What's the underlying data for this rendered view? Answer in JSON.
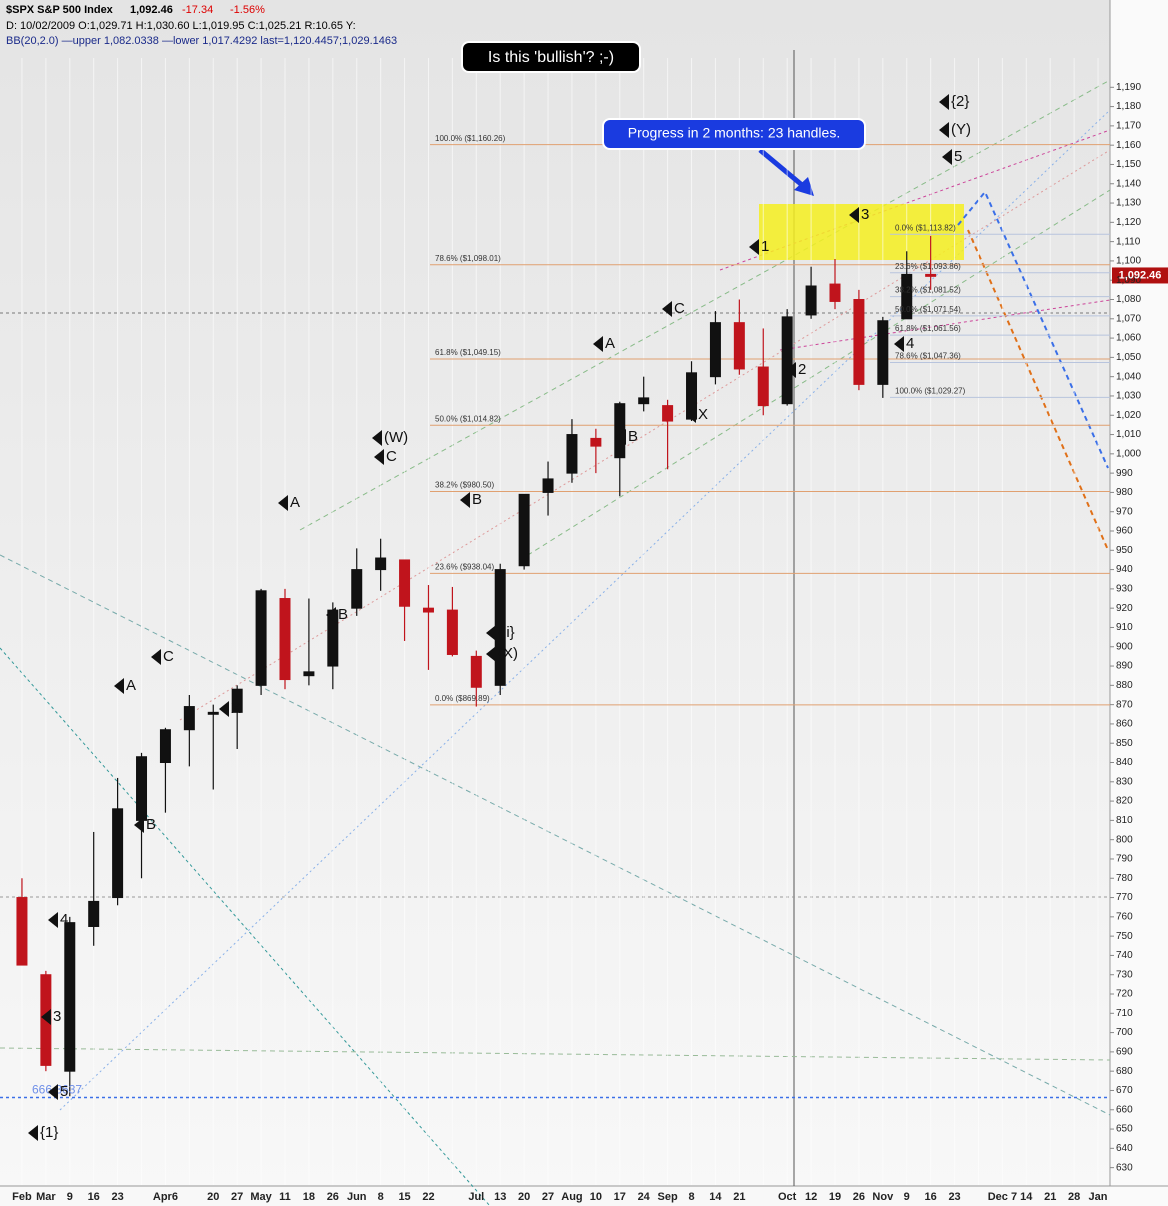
{
  "chart_data": {
    "type": "candlestick",
    "title": "$SPX S&P 500 Index",
    "last_price": {
      "value": 1092.46,
      "label": "1,092.46"
    },
    "change": "-17.34",
    "change_pct": "-1.56%",
    "info_line": "D: 10/02/2009 O:1,029.71 H:1,030.60 L:1,019.95 C:1,025.21 R:10.65 Y:",
    "bb_line": "BB(20,2.0) —upper 1,082.0338 —lower 1,017.4292 last=1,120.4457;1,029.1463",
    "annotation_question": "Is this 'bullish'? ;-)",
    "annotation_progress": "Progress in 2 months: 23 handles.",
    "categories": [
      "Feb",
      "Mar",
      "9",
      "16",
      "23",
      null,
      "Apr6",
      null,
      "20",
      "27",
      "May",
      "11",
      "18",
      "26",
      "Jun",
      "8",
      "15",
      "22",
      null,
      "Jul",
      "13",
      "20",
      "27",
      "Aug",
      "10",
      "17",
      "24",
      "Sep",
      "8",
      "14",
      "21",
      null,
      "Oct",
      "12",
      "19",
      "26",
      "Nov",
      "9",
      "16",
      "23",
      null,
      "Dec 7",
      "14",
      "21",
      "28",
      "Jan"
    ],
    "open": [
      770,
      730,
      680,
      755,
      770,
      810,
      840,
      857,
      865,
      866,
      880,
      925,
      885,
      890,
      920,
      940,
      945,
      920,
      919,
      895,
      880,
      942,
      980,
      990,
      1008,
      998,
      1026,
      1025,
      1018,
      1040,
      1068,
      1045,
      1026,
      1072,
      1088,
      1080,
      1036,
      1070,
      1093,
      null,
      null,
      null,
      null,
      null,
      null,
      null
    ],
    "high": [
      780,
      732,
      760,
      804,
      832,
      845,
      858,
      875,
      870,
      880,
      930,
      930,
      925,
      923,
      951,
      956,
      945,
      932,
      931,
      898,
      943,
      979,
      996,
      1018,
      1013,
      1027,
      1040,
      1028,
      1048,
      1074,
      1080,
      1065,
      1075,
      1097,
      1101,
      1085,
      1071,
      1105,
      1113,
      null,
      null,
      null,
      null,
      null,
      null,
      null
    ],
    "low": [
      735,
      680,
      667,
      745,
      766,
      780,
      814,
      838,
      826,
      847,
      875,
      878,
      880,
      878,
      916,
      929,
      903,
      888,
      895,
      869,
      875,
      940,
      968,
      985,
      990,
      978,
      1022,
      992,
      1017,
      1036,
      1041,
      1020,
      1025,
      1070,
      1075,
      1033,
      1029,
      1070,
      1085,
      null,
      null,
      null,
      null,
      null,
      null,
      null
    ],
    "close": [
      735,
      683,
      757,
      768,
      816,
      843,
      857,
      869,
      866,
      878,
      929,
      883,
      887,
      919,
      940,
      946,
      921,
      918,
      896,
      879,
      940,
      979,
      987,
      1010,
      1004,
      1026,
      1029,
      1017,
      1042,
      1068,
      1044,
      1025,
      1071,
      1087,
      1079,
      1036,
      1069,
      1093,
      1092,
      null,
      null,
      null,
      null,
      null,
      null,
      null
    ],
    "up_color": "#111111",
    "down_color": "#c0141c",
    "ylim": [
      621,
      1200
    ],
    "yticks": [
      630,
      640,
      650,
      660,
      670,
      680,
      690,
      700,
      710,
      720,
      730,
      740,
      750,
      760,
      770,
      780,
      790,
      800,
      810,
      820,
      830,
      840,
      850,
      860,
      870,
      880,
      890,
      900,
      910,
      920,
      930,
      940,
      950,
      960,
      970,
      980,
      990,
      {
        "value": 1000,
        "label": "1,000"
      },
      {
        "value": 1010,
        "label": "1,010"
      },
      {
        "value": 1020,
        "label": "1,020"
      },
      {
        "value": 1030,
        "label": "1,030"
      },
      {
        "value": 1040,
        "label": "1,040"
      },
      {
        "value": 1050,
        "label": "1,050"
      },
      {
        "value": 1060,
        "label": "1,060"
      },
      {
        "value": 1070,
        "label": "1,070"
      },
      {
        "value": 1080,
        "label": "1,080"
      },
      {
        "value": 1090,
        "label": "1,090"
      },
      {
        "value": 1100,
        "label": "1,100"
      },
      {
        "value": 1110,
        "label": "1,110"
      },
      {
        "value": 1120,
        "label": "1,120"
      },
      {
        "value": 1130,
        "label": "1,130"
      },
      {
        "value": 1140,
        "label": "1,140"
      },
      {
        "value": 1150,
        "label": "1,150"
      },
      {
        "value": 1160,
        "label": "1,160"
      },
      {
        "value": 1170,
        "label": "1,170"
      },
      {
        "value": 1180,
        "label": "1,180"
      },
      {
        "value": 1190,
        "label": "1,190"
      }
    ],
    "support_level": 666.3637,
    "fib_major": [
      {
        "value": 1160.26,
        "label": "100.0% ($1,160.26)"
      },
      {
        "value": 1098.01,
        "label": "78.6% ($1,098.01)"
      },
      {
        "value": 1049.15,
        "label": "61.8% ($1,049.15)"
      },
      {
        "value": 1014.82,
        "label": "50.0% ($1,014.82)"
      },
      {
        "value": 980.5,
        "label": "38.2% ($980.50)"
      },
      {
        "value": 938.04,
        "label": "23.6% ($938.04)"
      },
      {
        "value": 869.89,
        "label": "0.0% ($869.89)"
      }
    ],
    "fib_minor": [
      {
        "value": 1113.82,
        "label": "0.0% ($1,113.82)"
      },
      {
        "value": 1093.86,
        "label": "23.6% ($1,093.86)"
      },
      {
        "value": 1081.52,
        "label": "38.2% ($1,081.52)"
      },
      {
        "value": 1071.54,
        "label": "50.0% ($1,071.54)"
      },
      {
        "value": 1061.56,
        "label": "61.8% ($1,061.56)"
      },
      {
        "value": 1047.36,
        "label": "78.6% ($1,047.36)"
      },
      {
        "value": 1029.27,
        "label": "100.0% ($1,029.27)"
      }
    ],
    "wave_labels": [
      "{1}",
      "5",
      "3",
      "4",
      "A",
      "B",
      "C",
      "X",
      "A",
      "B",
      "(W)",
      "C",
      "B",
      "{ii}",
      "(X)",
      "A",
      "B",
      "C",
      "X",
      "1",
      "2",
      "3",
      "4",
      "5",
      "(Y)",
      "{2}"
    ]
  }
}
